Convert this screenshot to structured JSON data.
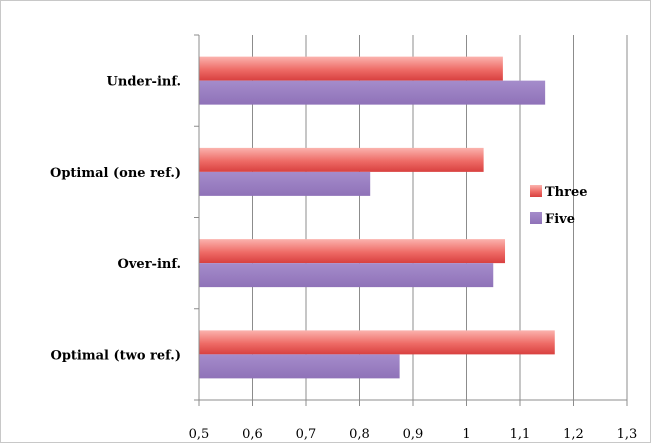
{
  "chart_data": {
    "type": "bar",
    "orientation": "horizontal",
    "categories": [
      "Optimal (two ref.)",
      "Over-inf.",
      "Optimal (one ref.)",
      "Under-inf."
    ],
    "series": [
      {
        "name": "Three",
        "values": [
          1.165,
          1.072,
          1.032,
          1.068
        ],
        "color": "#e8504f"
      },
      {
        "name": "Five",
        "values": [
          0.875,
          1.05,
          0.82,
          1.147
        ],
        "color": "#9b7fc0"
      }
    ],
    "xlim": [
      0.5,
      1.3
    ],
    "xticks": [
      "0,5",
      "0,6",
      "0,7",
      "0,8",
      "0,9",
      "1",
      "1,1",
      "1,2",
      "1,3"
    ],
    "grid": "vertical",
    "legend": "right"
  }
}
